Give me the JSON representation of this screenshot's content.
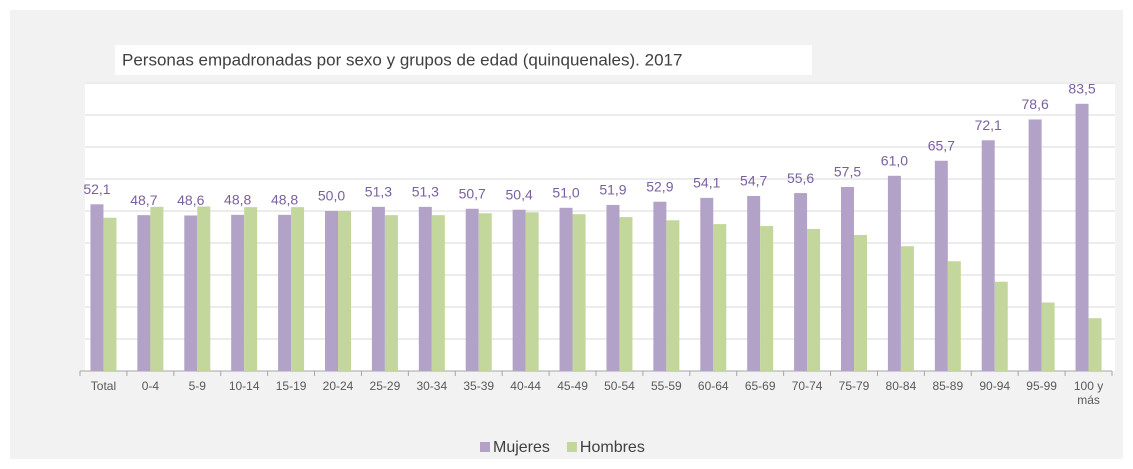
{
  "chart_data": {
    "type": "bar",
    "title": "Personas empadronadas por sexo y grupos de edad (quinquenales).  2017",
    "categories": [
      "Total",
      "0-4",
      "5-9",
      "10-14",
      "15-19",
      "20-24",
      "25-29",
      "30-34",
      "35-39",
      "40-44",
      "45-49",
      "50-54",
      "55-59",
      "60-64",
      "65-69",
      "70-74",
      "75-79",
      "80-84",
      "85-89",
      "90-94",
      "95-99",
      "100 y más"
    ],
    "series": [
      {
        "name": "Mujeres",
        "color": "#b3a2c7",
        "values": [
          52.1,
          48.7,
          48.6,
          48.8,
          48.8,
          50.0,
          51.3,
          51.3,
          50.7,
          50.4,
          51.0,
          51.9,
          52.9,
          54.1,
          54.7,
          55.6,
          57.5,
          61.0,
          65.7,
          72.1,
          78.6,
          83.5
        ],
        "value_labels": [
          "52,1",
          "48,7",
          "48,6",
          "48,8",
          "48,8",
          "50,0",
          "51,3",
          "51,3",
          "50,7",
          "50,4",
          "51,0",
          "51,9",
          "52,9",
          "54,1",
          "54,7",
          "55,6",
          "57,5",
          "61,0",
          "65,7",
          "72,1",
          "78,6",
          "83,5"
        ]
      },
      {
        "name": "Hombres",
        "color": "#c3d69b",
        "values": [
          47.9,
          51.3,
          51.4,
          51.2,
          51.2,
          50.0,
          48.7,
          48.7,
          49.3,
          49.6,
          49.0,
          48.1,
          47.1,
          45.9,
          45.3,
          44.4,
          42.5,
          39.0,
          34.3,
          27.9,
          21.4,
          16.5
        ]
      }
    ],
    "ylim": [
      0,
      90
    ],
    "yticks": [
      0,
      10,
      20,
      30,
      40,
      50,
      60,
      70,
      80,
      90
    ],
    "grid": true,
    "legend": "bottom"
  }
}
